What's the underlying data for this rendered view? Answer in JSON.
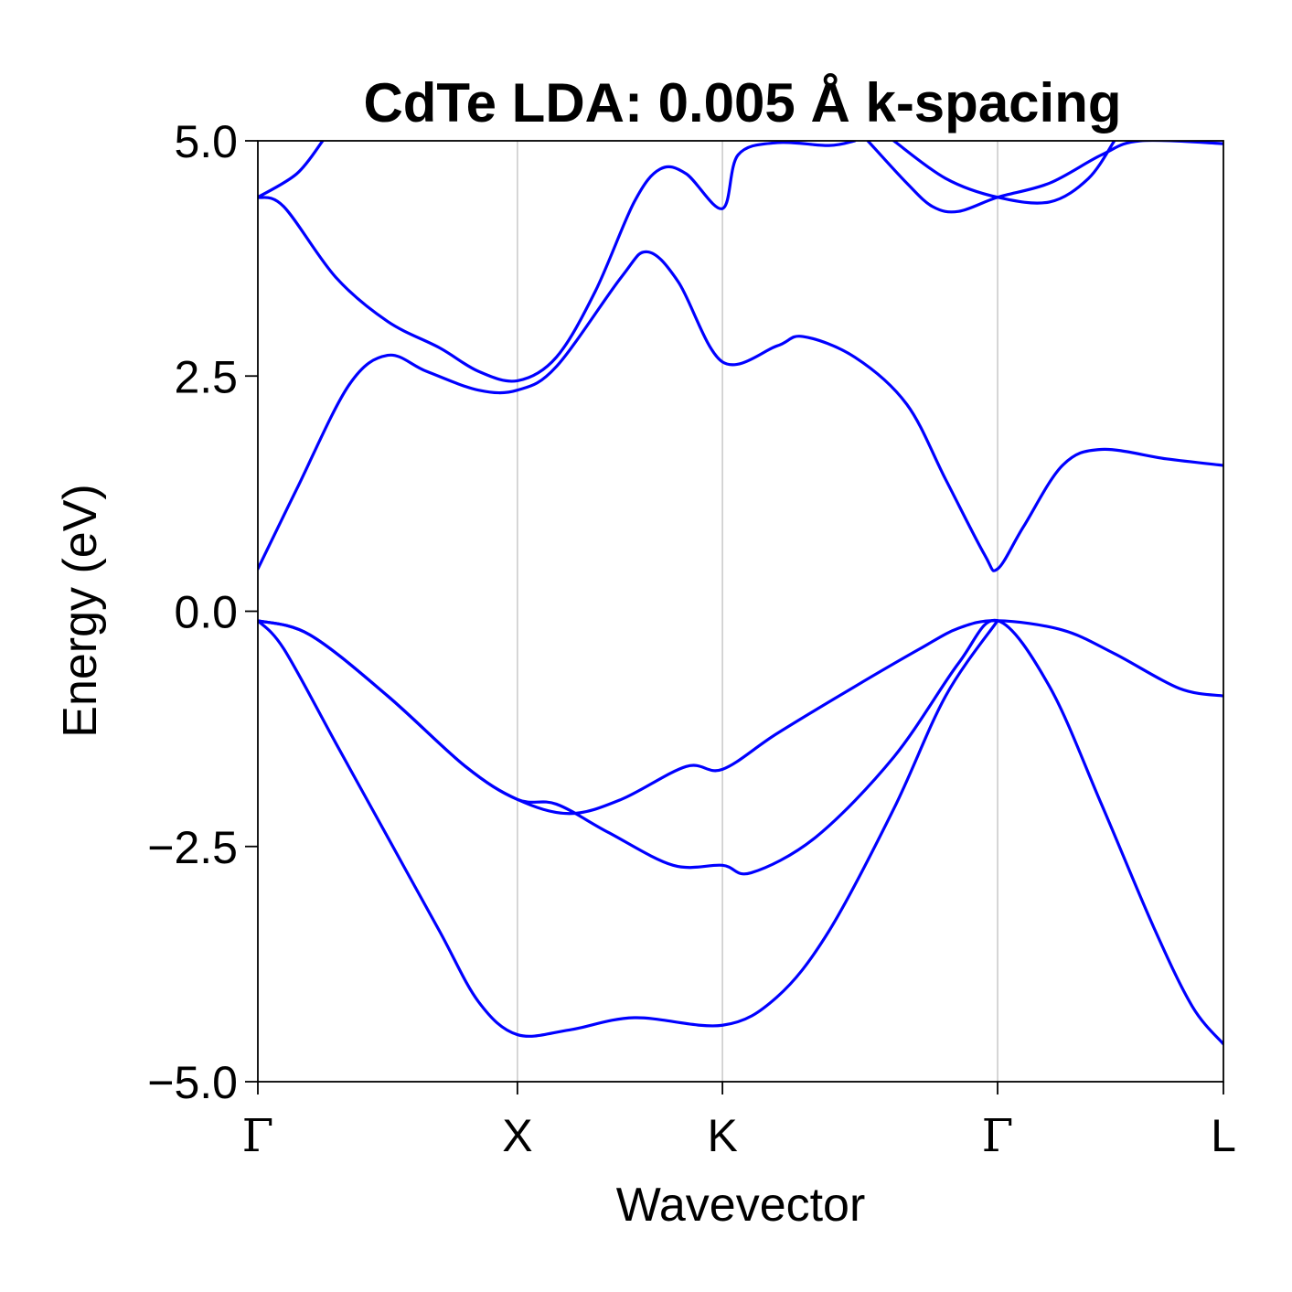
{
  "chart_data": {
    "type": "line",
    "title": "CdTe LDA: 0.005 Å k-spacing",
    "xlabel": "Wavevector",
    "ylabel": "Energy (eV)",
    "ylim": [
      -5.0,
      5.0
    ],
    "yticks": [
      "5.0",
      "2.5",
      "0.0",
      "−2.5",
      "−5.0"
    ],
    "ytick_values": [
      5.0,
      2.5,
      0.0,
      -2.5,
      -5.0
    ],
    "kpoints": [
      {
        "label": "Γ",
        "x": 0.0
      },
      {
        "label": "X",
        "x": 1.0
      },
      {
        "label": "K",
        "x": 1.79
      },
      {
        "label": "Γ",
        "x": 2.85
      },
      {
        "label": "L",
        "x": 3.72
      }
    ],
    "xlim": [
      0.0,
      3.72
    ],
    "grid": "vertical at high-symmetry points",
    "line_color": "#0000ff",
    "series": [
      {
        "values": [
          [
            0.0,
            -0.1
          ],
          [
            0.2,
            -0.25
          ],
          [
            0.5,
            -0.9
          ],
          [
            0.8,
            -1.65
          ],
          [
            1.0,
            -2.0
          ],
          [
            1.2,
            -2.15
          ],
          [
            1.4,
            -2.0
          ],
          [
            1.65,
            -1.65
          ],
          [
            1.79,
            -1.68
          ],
          [
            2.0,
            -1.3
          ],
          [
            2.3,
            -0.8
          ],
          [
            2.55,
            -0.4
          ],
          [
            2.7,
            -0.18
          ],
          [
            2.85,
            -0.1
          ],
          [
            3.1,
            -0.2
          ],
          [
            3.3,
            -0.45
          ],
          [
            3.55,
            -0.82
          ],
          [
            3.72,
            -0.9
          ]
        ]
      },
      {
        "values": [
          [
            0.0,
            -0.1
          ],
          [
            0.2,
            -0.25
          ],
          [
            0.5,
            -0.9
          ],
          [
            0.8,
            -1.65
          ],
          [
            1.0,
            -2.0
          ],
          [
            1.15,
            -2.05
          ],
          [
            1.35,
            -2.35
          ],
          [
            1.6,
            -2.7
          ],
          [
            1.79,
            -2.7
          ],
          [
            1.9,
            -2.78
          ],
          [
            2.15,
            -2.4
          ],
          [
            2.45,
            -1.55
          ],
          [
            2.7,
            -0.55
          ],
          [
            2.85,
            -0.1
          ],
          [
            3.05,
            -0.8
          ],
          [
            3.25,
            -2.05
          ],
          [
            3.45,
            -3.35
          ],
          [
            3.6,
            -4.2
          ],
          [
            3.72,
            -4.6
          ]
        ]
      },
      {
        "values": [
          [
            0.0,
            -0.1
          ],
          [
            0.1,
            -0.4
          ],
          [
            0.3,
            -1.4
          ],
          [
            0.5,
            -2.4
          ],
          [
            0.7,
            -3.4
          ],
          [
            0.85,
            -4.15
          ],
          [
            1.0,
            -4.5
          ],
          [
            1.2,
            -4.45
          ],
          [
            1.45,
            -4.32
          ],
          [
            1.79,
            -4.4
          ],
          [
            2.0,
            -4.1
          ],
          [
            2.2,
            -3.4
          ],
          [
            2.45,
            -2.1
          ],
          [
            2.65,
            -0.9
          ],
          [
            2.85,
            -0.1
          ]
        ]
      },
      {
        "values": [
          [
            0.0,
            0.45
          ],
          [
            0.15,
            1.3
          ],
          [
            0.35,
            2.4
          ],
          [
            0.5,
            2.72
          ],
          [
            0.65,
            2.55
          ],
          [
            0.85,
            2.35
          ],
          [
            1.0,
            2.35
          ],
          [
            1.15,
            2.6
          ],
          [
            1.4,
            3.55
          ],
          [
            1.5,
            3.82
          ],
          [
            1.62,
            3.5
          ],
          [
            1.79,
            2.65
          ],
          [
            2.0,
            2.82
          ],
          [
            2.1,
            2.92
          ],
          [
            2.3,
            2.7
          ],
          [
            2.5,
            2.2
          ],
          [
            2.65,
            1.4
          ],
          [
            2.8,
            0.6
          ],
          [
            2.85,
            0.45
          ],
          [
            2.95,
            0.9
          ],
          [
            3.1,
            1.55
          ],
          [
            3.25,
            1.72
          ],
          [
            3.5,
            1.62
          ],
          [
            3.72,
            1.55
          ]
        ]
      },
      {
        "values": [
          [
            0.0,
            4.4
          ],
          [
            0.1,
            4.3
          ],
          [
            0.3,
            3.55
          ],
          [
            0.5,
            3.08
          ],
          [
            0.7,
            2.8
          ],
          [
            0.85,
            2.55
          ],
          [
            1.0,
            2.45
          ],
          [
            1.15,
            2.7
          ],
          [
            1.3,
            3.4
          ],
          [
            1.45,
            4.35
          ],
          [
            1.55,
            4.7
          ],
          [
            1.65,
            4.65
          ],
          [
            1.79,
            4.28
          ],
          [
            1.85,
            4.85
          ],
          [
            2.0,
            4.98
          ],
          [
            2.2,
            4.95
          ],
          [
            2.3,
            5.0
          ]
        ]
      },
      {
        "values": [
          [
            0.0,
            4.4
          ],
          [
            0.15,
            4.65
          ],
          [
            0.25,
            5.0
          ]
        ]
      },
      {
        "values": [
          [
            2.35,
            5.0
          ],
          [
            2.5,
            4.55
          ],
          [
            2.6,
            4.3
          ],
          [
            2.7,
            4.25
          ],
          [
            2.85,
            4.4
          ],
          [
            3.05,
            4.55
          ],
          [
            3.25,
            4.85
          ],
          [
            3.4,
            5.0
          ],
          [
            3.72,
            4.97
          ]
        ]
      },
      {
        "values": [
          [
            2.45,
            5.0
          ],
          [
            2.65,
            4.6
          ],
          [
            2.85,
            4.4
          ],
          [
            3.05,
            4.35
          ],
          [
            3.2,
            4.6
          ],
          [
            3.3,
            5.0
          ]
        ]
      }
    ]
  }
}
